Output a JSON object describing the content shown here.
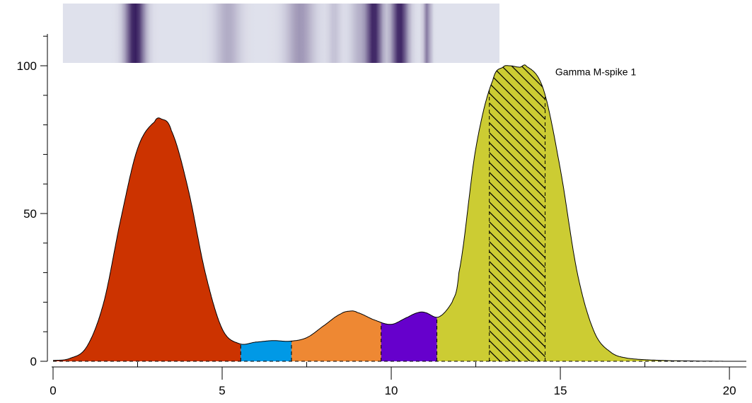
{
  "chart_data": {
    "type": "area",
    "title": "",
    "xlabel": "",
    "ylabel": "",
    "xlim": [
      0,
      20.5
    ],
    "ylim": [
      0,
      110
    ],
    "x_ticks": [
      0,
      5,
      10,
      15,
      20
    ],
    "x_tick_labels": [
      "0",
      "5",
      "10",
      "15",
      "20"
    ],
    "y_ticks": [
      0,
      50,
      100
    ],
    "y_tick_labels": [
      "0",
      "50",
      "100"
    ],
    "grid": false,
    "legend": "none",
    "curve": {
      "x": [
        0.0,
        0.5,
        1.0,
        1.5,
        2.0,
        2.5,
        3.0,
        3.2,
        3.5,
        4.0,
        4.5,
        5.0,
        5.5,
        6.0,
        6.5,
        7.0,
        7.5,
        8.0,
        8.5,
        8.8,
        9.0,
        9.5,
        10.0,
        10.5,
        10.8,
        11.0,
        11.4,
        11.8,
        12.0,
        12.5,
        13.0,
        13.3,
        13.5,
        13.8,
        14.0,
        14.5,
        15.0,
        15.5,
        16.0,
        16.5,
        17.0,
        18.0,
        19.0,
        20.0,
        20.5
      ],
      "y": [
        0.3,
        1.0,
        5.0,
        20.0,
        48.0,
        72.0,
        81.0,
        82.0,
        78.0,
        58.0,
        30.0,
        11.0,
        6.0,
        6.5,
        7.0,
        6.8,
        8.0,
        12.0,
        16.0,
        17.0,
        16.5,
        14.0,
        12.5,
        15.0,
        16.5,
        16.5,
        15.0,
        20.0,
        30.0,
        72.0,
        95.0,
        99.5,
        100.0,
        99.5,
        99.8,
        92.0,
        65.0,
        30.0,
        10.0,
        3.0,
        1.0,
        0.3,
        0.1,
        0.0,
        0.0
      ]
    },
    "fractions": [
      {
        "x_start": 0.0,
        "x_end": 5.55,
        "color": "#cc3300"
      },
      {
        "x_start": 5.55,
        "x_end": 7.05,
        "color": "#0099e6"
      },
      {
        "x_start": 7.05,
        "x_end": 9.7,
        "color": "#ee8833"
      },
      {
        "x_start": 9.7,
        "x_end": 11.35,
        "color": "#6600cc"
      },
      {
        "x_start": 11.35,
        "x_end": 20.5,
        "color": "#cccc33"
      }
    ],
    "m_spike": {
      "label": "Gamma M-spike 1",
      "x_start": 12.9,
      "x_end": 14.55
    },
    "gel_strip": {
      "x_range": [
        0.5,
        13.2
      ],
      "bands": [
        {
          "center": 2.6,
          "width": 0.7,
          "intensity": 0.95
        },
        {
          "center": 5.3,
          "width": 0.9,
          "intensity": 0.25
        },
        {
          "center": 7.4,
          "width": 1.0,
          "intensity": 0.35
        },
        {
          "center": 9.1,
          "width": 0.6,
          "intensity": 0.2
        },
        {
          "center": 8.4,
          "width": 0.45,
          "intensity": 0.15
        },
        {
          "center": 9.55,
          "width": 0.6,
          "intensity": 0.9
        },
        {
          "center": 10.3,
          "width": 0.6,
          "intensity": 0.9
        },
        {
          "center": 11.1,
          "width": 0.25,
          "intensity": 0.5
        }
      ]
    }
  }
}
